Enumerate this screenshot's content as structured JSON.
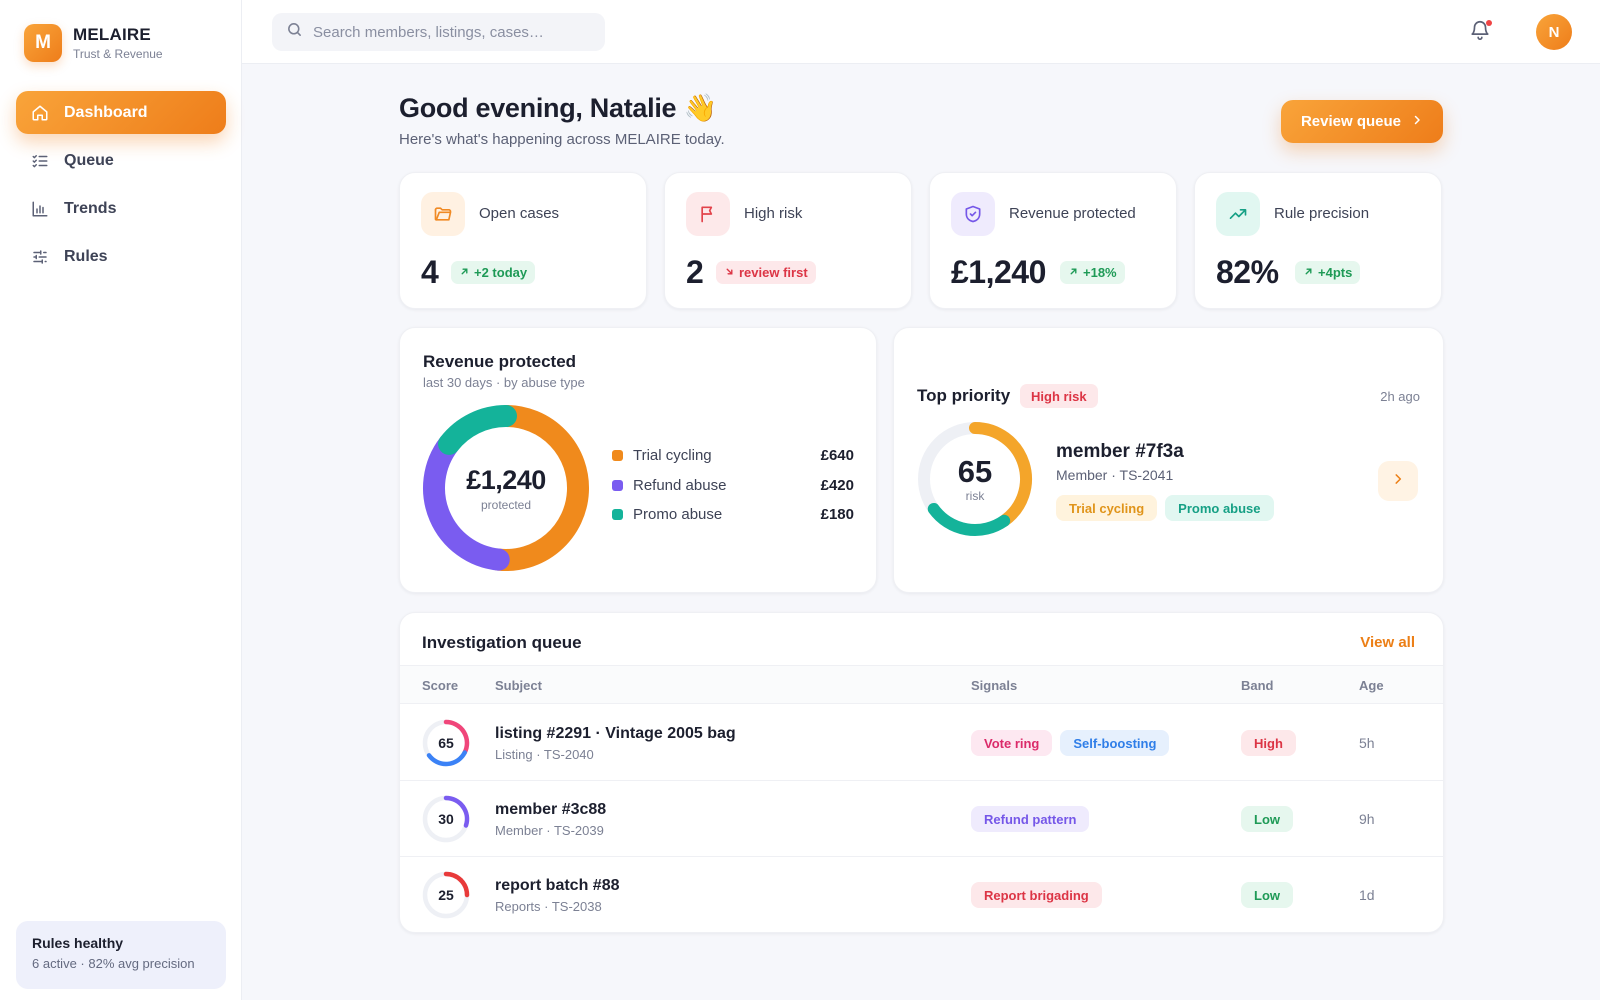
{
  "brand": {
    "logo_letter": "M",
    "name": "MELAIRE",
    "tagline": "Trust & Revenue"
  },
  "nav": [
    {
      "label": "Dashboard",
      "icon": "home-icon",
      "active": true
    },
    {
      "label": "Queue",
      "icon": "checklist-icon",
      "active": false
    },
    {
      "label": "Trends",
      "icon": "bar-chart-icon",
      "active": false
    },
    {
      "label": "Rules",
      "icon": "sliders-icon",
      "active": false
    }
  ],
  "rules_status": {
    "title": "Rules healthy",
    "subtitle": "6 active · 82% avg precision"
  },
  "search": {
    "placeholder": "Search members, listings, cases…",
    "value": ""
  },
  "user": {
    "initial": "N"
  },
  "header": {
    "greeting": "Good evening, Natalie 👋",
    "subtitle": "Here's what's happening across MELAIRE today.",
    "review_button": "Review queue"
  },
  "stats": [
    {
      "label": "Open cases",
      "value": "4",
      "badge": "+2 today",
      "badge_tone": "green",
      "icon": "folder-icon",
      "color": "#f08a24"
    },
    {
      "label": "High risk",
      "value": "2",
      "badge": "review first",
      "badge_tone": "red",
      "icon": "flag-icon",
      "color": "#e2434b"
    },
    {
      "label": "Revenue protected",
      "value": "£1,240",
      "badge": "+18%",
      "badge_tone": "green",
      "icon": "shield-icon",
      "color": "#7557e8"
    },
    {
      "label": "Rule precision",
      "value": "82%",
      "badge": "+4pts",
      "badge_tone": "green",
      "icon": "trending-up-icon",
      "color": "#16a085"
    }
  ],
  "revenue": {
    "title": "Revenue protected",
    "subtitle": "last 30 days · by abuse type",
    "total": "£1,240",
    "total_label": "protected"
  },
  "chart_data": {
    "type": "pie",
    "variant": "donut",
    "categories": [
      "Trial cycling",
      "Refund abuse",
      "Promo abuse"
    ],
    "values": [
      640,
      420,
      180
    ],
    "labels": [
      "£640",
      "£420",
      "£180"
    ],
    "colors": [
      "#f08a1c",
      "#7a5cf0",
      "#14b39a"
    ],
    "title": "Revenue protected"
  },
  "priority": {
    "title": "Top priority",
    "badge": "High risk",
    "time": "2h ago",
    "risk_score": 65,
    "risk_label": "risk",
    "risk_colors": [
      "#f4a52a",
      "#14b39a"
    ],
    "name": "member #7f3a",
    "meta": "Member · TS-2041",
    "tags": [
      {
        "label": "Trial cycling",
        "tone": "orange"
      },
      {
        "label": "Promo abuse",
        "tone": "teal"
      }
    ]
  },
  "queue": {
    "title": "Investigation queue",
    "view_all": "View all",
    "columns": [
      "Score",
      "Subject",
      "Signals",
      "Band",
      "Age"
    ],
    "rows": [
      {
        "score": 65,
        "colors": [
          "#f0467a",
          "#3b82f6"
        ],
        "subject": "listing #2291 · Vintage 2005 bag",
        "meta": "Listing · TS-2040",
        "signals": [
          {
            "label": "Vote ring",
            "tone": "pink"
          },
          {
            "label": "Self-boosting",
            "tone": "blue"
          }
        ],
        "band": "High",
        "band_tone": "red",
        "age": "5h"
      },
      {
        "score": 30,
        "colors": [
          "#7a5cf0",
          "#7a5cf0"
        ],
        "subject": "member #3c88",
        "meta": "Member · TS-2039",
        "signals": [
          {
            "label": "Refund pattern",
            "tone": "purple"
          }
        ],
        "band": "Low",
        "band_tone": "green",
        "age": "9h"
      },
      {
        "score": 25,
        "colors": [
          "#e83a3a",
          "#e83a3a"
        ],
        "subject": "report batch #88",
        "meta": "Reports · TS-2038",
        "signals": [
          {
            "label": "Report brigading",
            "tone": "red"
          }
        ],
        "band": "Low",
        "band_tone": "green",
        "age": "1d"
      }
    ]
  }
}
